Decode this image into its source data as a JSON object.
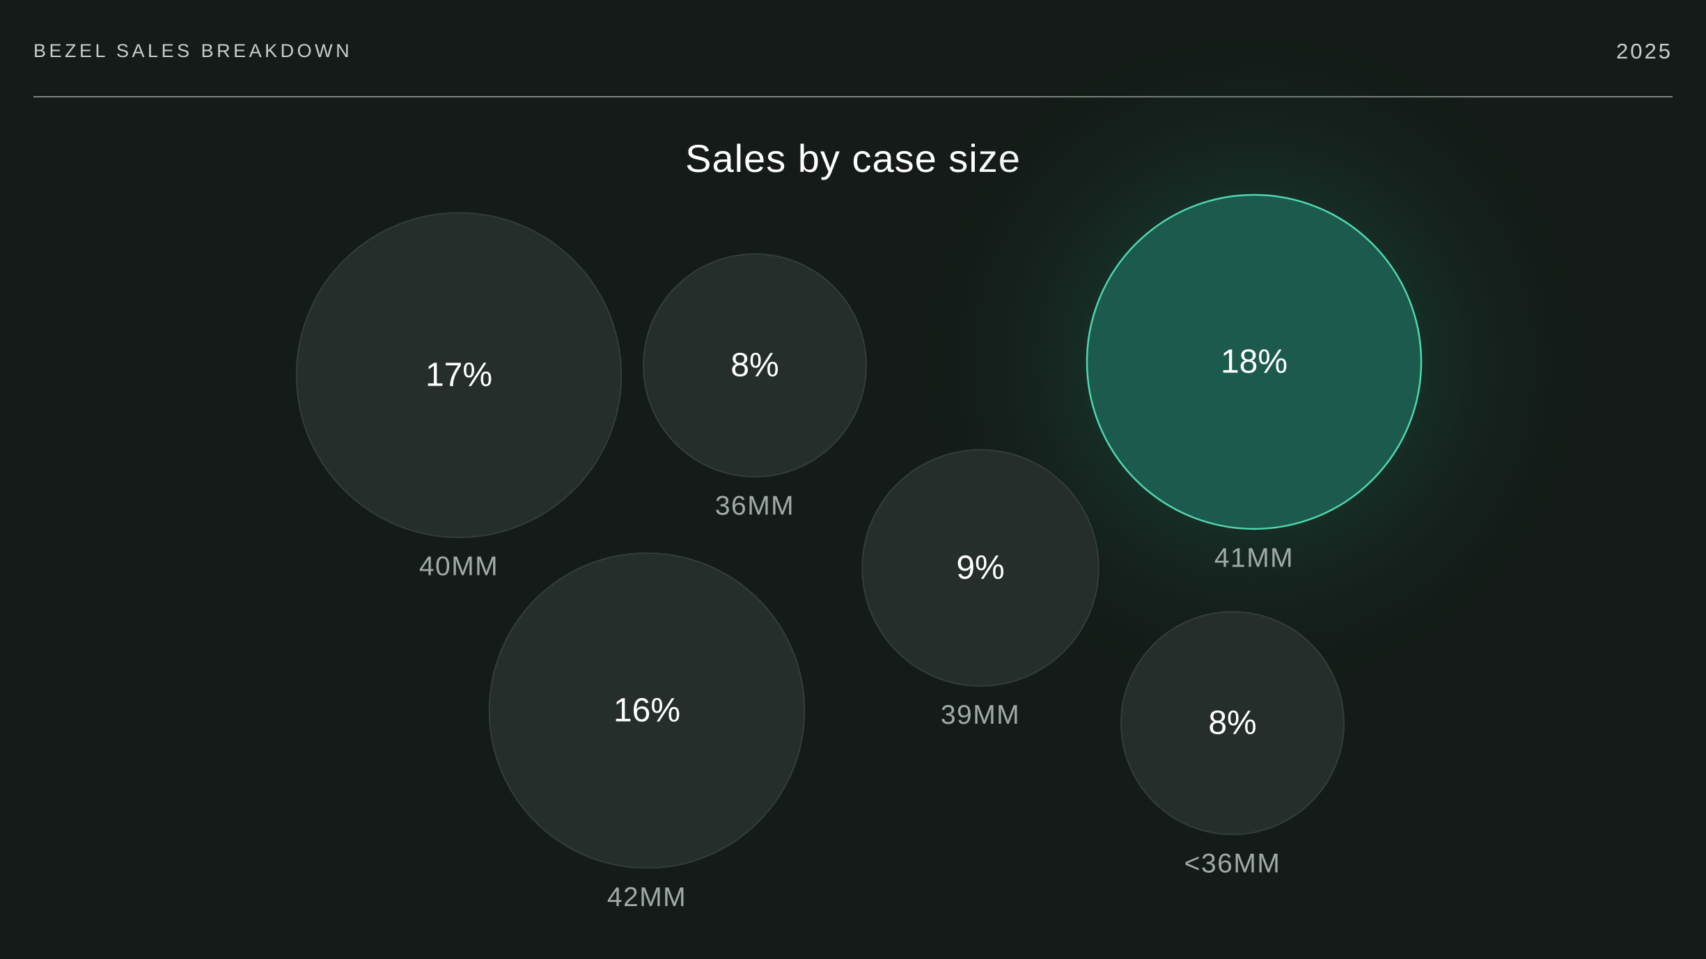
{
  "header": {
    "title": "BEZEL SALES BREAKDOWN",
    "year": "2025"
  },
  "chart_data": {
    "type": "bubble",
    "title": "Sales by case size",
    "unit": "%",
    "highlight_color": "#4fd8ae",
    "bubble_color": "#252e2b",
    "points": [
      {
        "label": "40MM",
        "value": 17,
        "display": "17%",
        "highlight": false
      },
      {
        "label": "36MM",
        "value": 8,
        "display": "8%",
        "highlight": false
      },
      {
        "label": "41MM",
        "value": 18,
        "display": "18%",
        "highlight": true
      },
      {
        "label": "39MM",
        "value": 9,
        "display": "9%",
        "highlight": false
      },
      {
        "label": "42MM",
        "value": 16,
        "display": "16%",
        "highlight": false
      },
      {
        "label": "<36MM",
        "value": 8,
        "display": "8%",
        "highlight": false
      }
    ]
  }
}
